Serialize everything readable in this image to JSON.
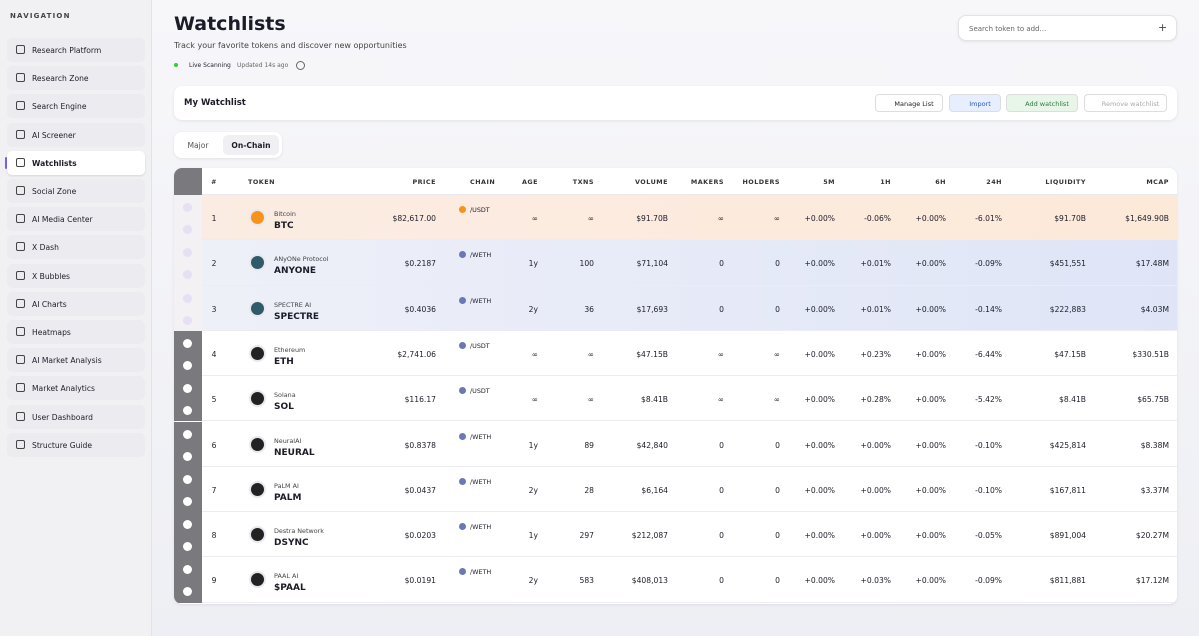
{
  "sidebar": {
    "heading": "NAVIGATION",
    "items": [
      "Research Platform",
      "Research Zone",
      "Search Engine",
      "AI Screener",
      "Watchlists",
      "Social Zone",
      "AI Media Center",
      "X Dash",
      "X Bubbles",
      "AI Charts",
      "Heatmaps",
      "AI Market Analysis",
      "Market Analytics",
      "User Dashboard",
      "Structure Guide"
    ]
  },
  "header": {
    "title": "Watchlists",
    "subtitle": "Track your favorite tokens and discover new opportunities",
    "status": "Live Scanning",
    "updated": "Updated 14s ago",
    "search_placeholder": "Search token to add..."
  },
  "watchlist": {
    "name": "My Watchlist",
    "buttons": [
      "Manage List",
      "Import",
      "Add watchlist",
      "Remove watchlist"
    ],
    "tabs": [
      "Major",
      "On-Chain"
    ]
  },
  "table": {
    "columns": [
      "#",
      "TOKEN",
      "PRICE",
      "CHAIN",
      "AGE",
      "TXNS",
      "VOLUME",
      "MAKERS",
      "HOLDERS",
      "5M",
      "1H",
      "6H",
      "24H",
      "LIQUIDITY",
      "MCAP"
    ],
    "rows": [
      {
        "rank": "1",
        "name": "Bitcoin",
        "symbol": "BTC",
        "price": "$82,617.00",
        "chain": "/USDT",
        "age": "∞",
        "txns": "∞",
        "volume": "$91.70B",
        "makers": "∞",
        "holders": "∞",
        "m5": "+0.00%",
        "h1": "-0.06%",
        "h6": "+0.00%",
        "h24": "-6.01%",
        "liquidity": "$91.70B",
        "mcap": "$1,649.90B"
      },
      {
        "rank": "2",
        "name": "ANyONe Protocol",
        "symbol": "ANYONE",
        "price": "$0.2187",
        "chain": "/WETH",
        "age": "1y",
        "txns": "100",
        "volume": "$71,104",
        "makers": "0",
        "holders": "0",
        "m5": "+0.00%",
        "h1": "+0.01%",
        "h6": "+0.00%",
        "h24": "-0.09%",
        "liquidity": "$451,551",
        "mcap": "$17.48M"
      },
      {
        "rank": "3",
        "name": "SPECTRE AI",
        "symbol": "SPECTRE",
        "price": "$0.4036",
        "chain": "/WETH",
        "age": "2y",
        "txns": "36",
        "volume": "$17,693",
        "makers": "0",
        "holders": "0",
        "m5": "+0.00%",
        "h1": "+0.01%",
        "h6": "+0.00%",
        "h24": "-0.14%",
        "liquidity": "$222,883",
        "mcap": "$4.03M"
      },
      {
        "rank": "4",
        "name": "Ethereum",
        "symbol": "ETH",
        "price": "$2,741.06",
        "chain": "/USDT",
        "age": "∞",
        "txns": "∞",
        "volume": "$47.15B",
        "makers": "∞",
        "holders": "∞",
        "m5": "+0.00%",
        "h1": "+0.23%",
        "h6": "+0.00%",
        "h24": "-6.44%",
        "liquidity": "$47.15B",
        "mcap": "$330.51B"
      },
      {
        "rank": "5",
        "name": "Solana",
        "symbol": "SOL",
        "price": "$116.17",
        "chain": "/USDT",
        "age": "∞",
        "txns": "∞",
        "volume": "$8.41B",
        "makers": "∞",
        "holders": "∞",
        "m5": "+0.00%",
        "h1": "+0.28%",
        "h6": "+0.00%",
        "h24": "-5.42%",
        "liquidity": "$8.41B",
        "mcap": "$65.75B"
      },
      {
        "rank": "6",
        "name": "NeuralAI",
        "symbol": "NEURAL",
        "price": "$0.8378",
        "chain": "/WETH",
        "age": "1y",
        "txns": "89",
        "volume": "$42,840",
        "makers": "0",
        "holders": "0",
        "m5": "+0.00%",
        "h1": "+0.00%",
        "h6": "+0.00%",
        "h24": "-0.10%",
        "liquidity": "$425,814",
        "mcap": "$8.38M"
      },
      {
        "rank": "7",
        "name": "PaLM AI",
        "symbol": "PALM",
        "price": "$0.0437",
        "chain": "/WETH",
        "age": "2y",
        "txns": "28",
        "volume": "$6,164",
        "makers": "0",
        "holders": "0",
        "m5": "+0.00%",
        "h1": "+0.00%",
        "h6": "+0.00%",
        "h24": "-0.10%",
        "liquidity": "$167,811",
        "mcap": "$3.37M"
      },
      {
        "rank": "8",
        "name": "Destra Network",
        "symbol": "DSYNC",
        "price": "$0.0203",
        "chain": "/WETH",
        "age": "1y",
        "txns": "297",
        "volume": "$212,087",
        "makers": "0",
        "holders": "0",
        "m5": "+0.00%",
        "h1": "+0.00%",
        "h6": "+0.00%",
        "h24": "-0.05%",
        "liquidity": "$891,004",
        "mcap": "$20.27M"
      },
      {
        "rank": "9",
        "name": "PAAL AI",
        "symbol": "$PAAL",
        "price": "$0.0191",
        "chain": "/WETH",
        "age": "2y",
        "txns": "583",
        "volume": "$408,013",
        "makers": "0",
        "holders": "0",
        "m5": "+0.00%",
        "h1": "+0.03%",
        "h6": "+0.00%",
        "h24": "-0.09%",
        "liquidity": "$811,881",
        "mcap": "$17.12M"
      }
    ]
  }
}
